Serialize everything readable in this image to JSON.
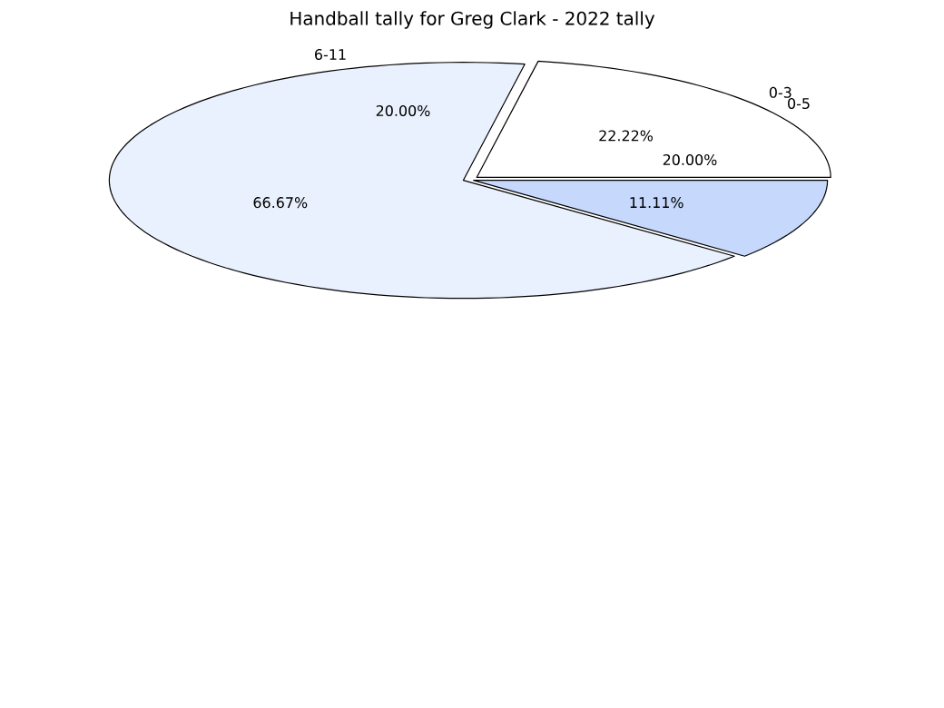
{
  "chart_data": {
    "type": "pie",
    "title": "Handball tally for Greg Clark - 2022 tally",
    "categories": [
      "0-3",
      null,
      null
    ],
    "values": [
      22.22,
      66.67,
      11.11
    ],
    "colors": [
      "#ffffff",
      "#eaf1fe",
      "#c6d9fd"
    ],
    "value_labels": [
      "22.22%",
      "66.67%",
      "11.11%"
    ],
    "annotations": [
      "0-5",
      "6-11",
      "20.00%",
      "20.00%"
    ]
  }
}
